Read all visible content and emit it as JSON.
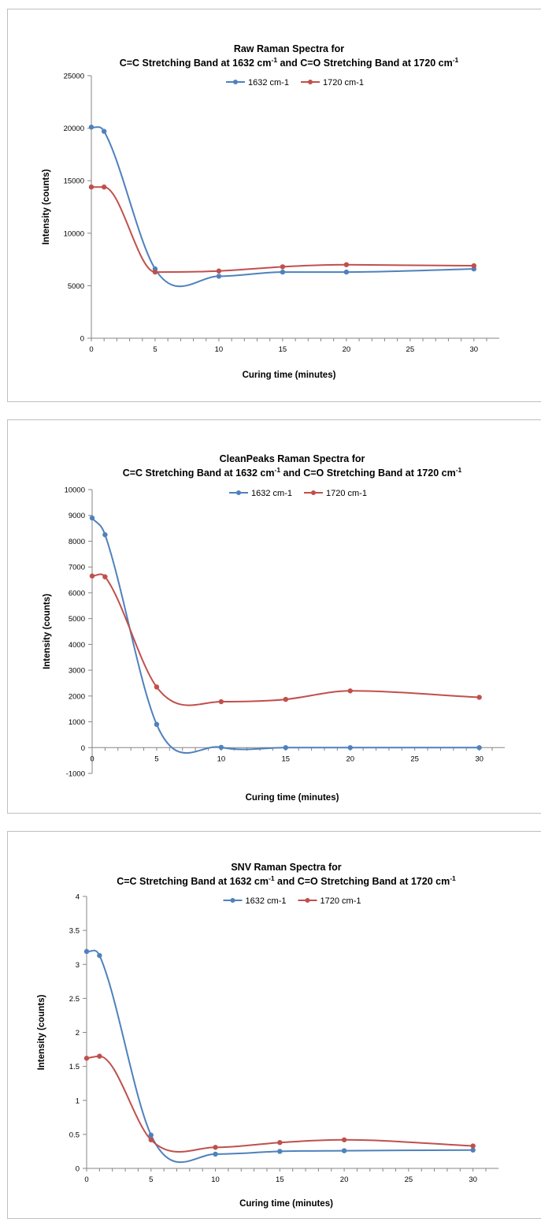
{
  "chart_data": [
    {
      "type": "line",
      "title": "Raw Raman Spectra for",
      "subtitle": {
        "pre": "C=C Stretching Band at 1632 cm",
        "sup1": "-1",
        "mid": " and C=O Stretching Band at 1720 cm",
        "sup2": "-1"
      },
      "xlabel": "Curing time (minutes)",
      "ylabel": "Intensity (counts)",
      "x": [
        0,
        1,
        5,
        10,
        15,
        20,
        30
      ],
      "xticks": [
        0,
        5,
        10,
        15,
        20,
        25,
        30
      ],
      "xlim": [
        0,
        31
      ],
      "ylim": [
        0,
        25000
      ],
      "yticks": [
        0,
        5000,
        10000,
        15000,
        20000,
        25000
      ],
      "grid": false,
      "legend": "top-center",
      "series": [
        {
          "name": "1632 cm-1",
          "color": "#4f81bd",
          "values": [
            20100,
            19700,
            6600,
            5900,
            6300,
            6300,
            6600
          ]
        },
        {
          "name": "1720 cm-1",
          "color": "#c0504d",
          "values": [
            14400,
            14400,
            6300,
            6400,
            6800,
            7000,
            6900
          ]
        }
      ]
    },
    {
      "type": "line",
      "title": "CleanPeaks Raman Spectra for",
      "subtitle": {
        "pre": "C=C Stretching Band at 1632 cm",
        "sup1": "-1",
        "mid": " and C=O Stretching Band at 1720 cm",
        "sup2": "-1"
      },
      "xlabel": "Curing time (minutes)",
      "ylabel": "Intensity (counts)",
      "x": [
        0,
        1,
        5,
        10,
        15,
        20,
        30
      ],
      "xticks": [
        0,
        5,
        10,
        15,
        20,
        25,
        30
      ],
      "xlim": [
        0,
        31
      ],
      "ylim": [
        -1000,
        10000
      ],
      "yticks": [
        -1000,
        0,
        1000,
        2000,
        3000,
        4000,
        5000,
        6000,
        7000,
        8000,
        9000,
        10000
      ],
      "grid": false,
      "legend": "top-center",
      "series": [
        {
          "name": "1632 cm-1",
          "color": "#4f81bd",
          "values": [
            8900,
            8250,
            900,
            10,
            0,
            0,
            0
          ]
        },
        {
          "name": "1720 cm-1",
          "color": "#c0504d",
          "values": [
            6650,
            6620,
            2350,
            1780,
            1870,
            2200,
            1950
          ]
        }
      ]
    },
    {
      "type": "line",
      "title": "SNV Raman Spectra for",
      "subtitle": {
        "pre": "C=C Stretching Band at 1632 cm",
        "sup1": "-1",
        "mid": " and C=O Stretching Band at 1720 cm",
        "sup2": "-1"
      },
      "xlabel": "Curing time (minutes)",
      "ylabel": "Intensity (counts)",
      "x": [
        0,
        1,
        5,
        10,
        15,
        20,
        30
      ],
      "xticks": [
        0,
        5,
        10,
        15,
        20,
        25,
        30
      ],
      "xlim": [
        0,
        31
      ],
      "ylim": [
        0,
        4
      ],
      "yticks": [
        0,
        0.5,
        1,
        1.5,
        2,
        2.5,
        3,
        3.5,
        4
      ],
      "grid": false,
      "legend": "top-center",
      "series": [
        {
          "name": "1632 cm-1",
          "color": "#4f81bd",
          "values": [
            3.19,
            3.13,
            0.49,
            0.21,
            0.25,
            0.26,
            0.27
          ]
        },
        {
          "name": "1720 cm-1",
          "color": "#c0504d",
          "values": [
            1.62,
            1.65,
            0.42,
            0.31,
            0.38,
            0.42,
            0.33
          ]
        }
      ]
    }
  ]
}
